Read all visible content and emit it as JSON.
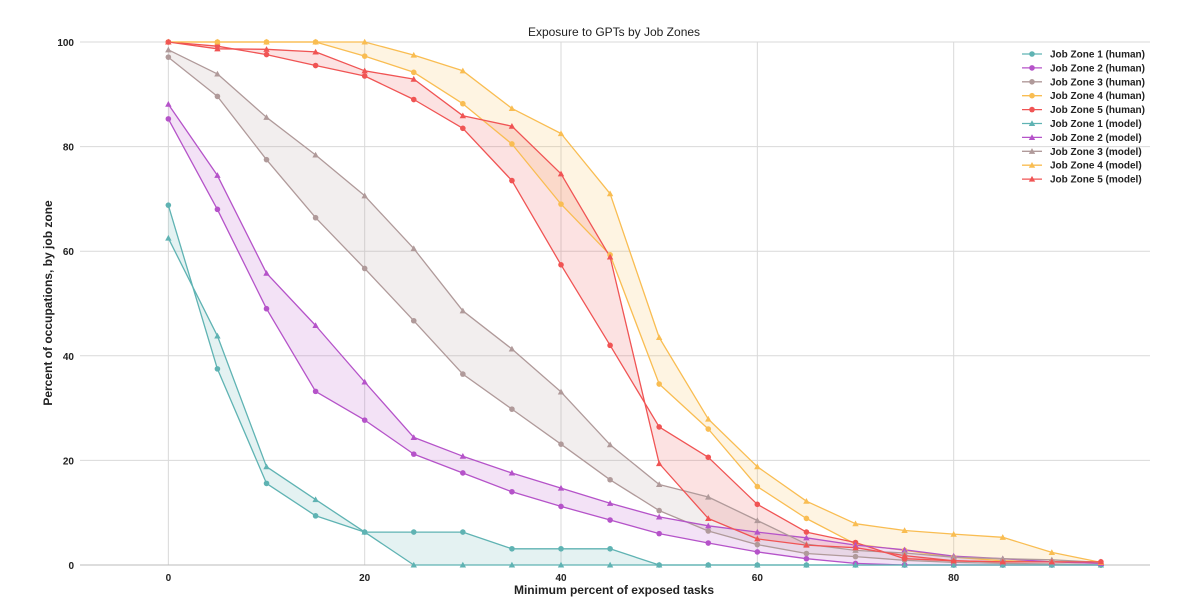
{
  "chart_data": {
    "type": "line",
    "title": "Exposure to GPTs by Job Zones",
    "xlabel": "Minimum percent of exposed tasks",
    "ylabel": "Percent of occupations, by job zone",
    "xlim": [
      -9,
      100
    ],
    "ylim": [
      0,
      100
    ],
    "xticks": [
      "0",
      "20",
      "40",
      "60",
      "80"
    ],
    "yticks": [
      "0",
      "20",
      "40",
      "60",
      "80",
      "100"
    ],
    "grid": true,
    "legend_position": "top-right",
    "x": [
      0,
      5,
      10,
      15,
      20,
      25,
      30,
      35,
      40,
      45,
      50,
      55,
      60,
      65,
      70,
      75,
      80,
      85,
      90,
      95
    ],
    "series": [
      {
        "name": "Job Zone 1 (human)",
        "color": "#5fb3b3",
        "marker": "circle",
        "zone": 1,
        "values": [
          68.8,
          37.5,
          15.6,
          9.4,
          6.3,
          6.3,
          6.3,
          3.1,
          3.1,
          3.1,
          0,
          0,
          0,
          0,
          0,
          0,
          0,
          0,
          0,
          0
        ]
      },
      {
        "name": "Job Zone 2 (human)",
        "color": "#b553c9",
        "marker": "circle",
        "zone": 2,
        "values": [
          85.3,
          68.0,
          49.0,
          33.2,
          27.7,
          21.2,
          17.6,
          14.0,
          11.2,
          8.6,
          6.0,
          4.2,
          2.5,
          1.2,
          0.3,
          0,
          0,
          0,
          0,
          0
        ]
      },
      {
        "name": "Job Zone 3 (human)",
        "color": "#b09a9a",
        "marker": "circle",
        "zone": 3,
        "values": [
          97.1,
          89.6,
          77.5,
          66.4,
          56.7,
          46.7,
          36.5,
          29.8,
          23.1,
          16.3,
          10.4,
          6.5,
          3.9,
          2.2,
          1.6,
          0.9,
          0.5,
          0.3,
          0.2,
          0
        ]
      },
      {
        "name": "Job Zone 4 (human)",
        "color": "#f9bd52",
        "marker": "circle",
        "zone": 4,
        "values": [
          100,
          100,
          100,
          100,
          97.3,
          94.2,
          88.2,
          80.5,
          69.0,
          59.3,
          34.6,
          26.0,
          15.0,
          8.9,
          4.0,
          2.8,
          1.5,
          0.8,
          0.6,
          0.3
        ]
      },
      {
        "name": "Job Zone 5 (human)",
        "color": "#f05454",
        "marker": "circle",
        "zone": 5,
        "values": [
          100,
          99.2,
          97.6,
          95.5,
          93.5,
          89.0,
          83.5,
          73.5,
          57.4,
          42.0,
          26.4,
          20.6,
          11.6,
          6.3,
          4.3,
          1.2,
          0.8,
          0.6,
          0.6,
          0.6
        ]
      },
      {
        "name": "Job Zone 1 (model)",
        "color": "#5fb3b3",
        "marker": "triangle",
        "zone": 1,
        "values": [
          62.5,
          43.8,
          18.8,
          12.5,
          6.3,
          0,
          0,
          0,
          0,
          0,
          0,
          0,
          0,
          0,
          0,
          0,
          0,
          0,
          0,
          0
        ]
      },
      {
        "name": "Job Zone 2 (model)",
        "color": "#b553c9",
        "marker": "triangle",
        "zone": 2,
        "values": [
          88.1,
          74.5,
          55.8,
          45.8,
          35.0,
          24.4,
          20.8,
          17.6,
          14.7,
          11.8,
          9.2,
          7.5,
          6.3,
          5.2,
          3.8,
          2.9,
          1.7,
          1.2,
          0.6,
          0.3
        ]
      },
      {
        "name": "Job Zone 3 (model)",
        "color": "#b09a9a",
        "marker": "triangle",
        "zone": 3,
        "values": [
          98.5,
          93.9,
          85.6,
          78.4,
          70.6,
          60.5,
          48.6,
          41.3,
          33.1,
          23.0,
          15.4,
          13.0,
          8.5,
          4.0,
          2.8,
          2.3,
          1.5,
          1.2,
          1.0,
          0.5
        ]
      },
      {
        "name": "Job Zone 4 (model)",
        "color": "#f9bd52",
        "marker": "triangle",
        "zone": 4,
        "values": [
          100,
          100,
          100,
          100,
          100,
          97.5,
          94.5,
          87.3,
          82.5,
          71.0,
          43.5,
          27.9,
          18.8,
          12.2,
          7.9,
          6.6,
          5.9,
          5.3,
          2.4,
          0.5
        ]
      },
      {
        "name": "Job Zone 5 (model)",
        "color": "#f05454",
        "marker": "triangle",
        "zone": 5,
        "values": [
          100,
          98.7,
          98.6,
          98.1,
          94.5,
          92.9,
          85.9,
          83.9,
          74.8,
          58.9,
          19.4,
          8.9,
          5.0,
          3.8,
          3.3,
          1.8,
          0.8,
          0.6,
          0.6,
          0.6
        ]
      }
    ]
  }
}
